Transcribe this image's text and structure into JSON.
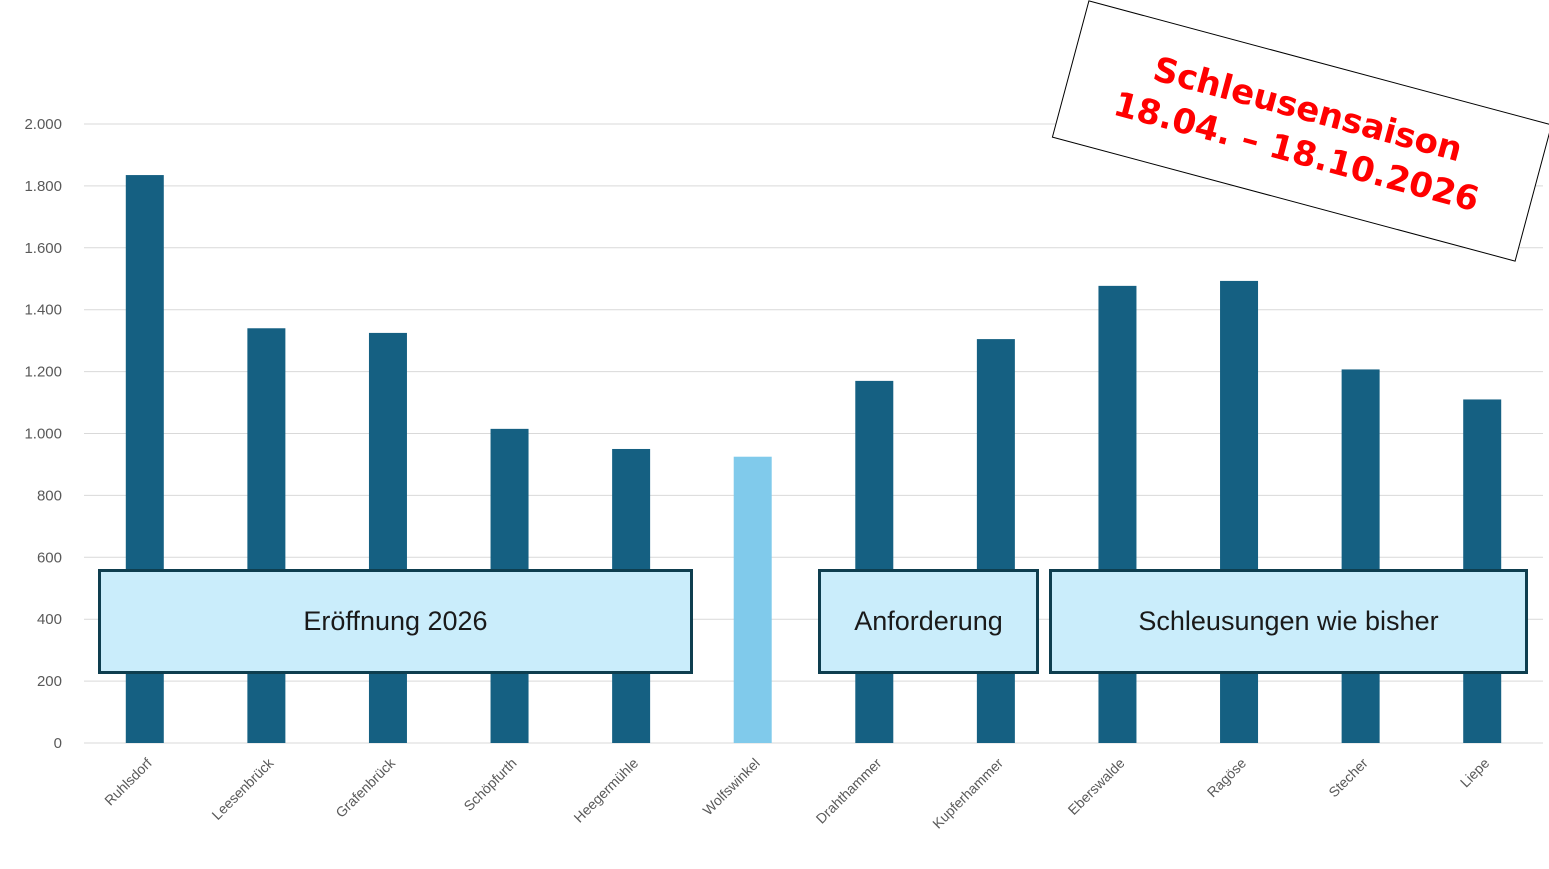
{
  "chart_data": {
    "type": "bar",
    "categories": [
      "Ruhlsdorf",
      "Leesenbrück",
      "Grafenbrück",
      "Schöpfurth",
      "Heegermühle",
      "Wolfswinkel",
      "Drahthammer",
      "Kupferhammer",
      "Eberswalde",
      "Ragöse",
      "Stecher",
      "Liepe"
    ],
    "values": [
      1835,
      1340,
      1325,
      1015,
      950,
      925,
      1170,
      1305,
      1477,
      1493,
      1207,
      1110
    ],
    "highlight_index": 5,
    "ylim": [
      0,
      2000
    ],
    "yticks": [
      0,
      200,
      400,
      600,
      800,
      1000,
      1200,
      1400,
      1600,
      1800,
      2000
    ],
    "ytick_labels": [
      "0",
      "200",
      "400",
      "600",
      "800",
      "1.000",
      "1.200",
      "1.400",
      "1.600",
      "1.800",
      "2.000"
    ],
    "grid": true,
    "title": "",
    "xlabel": "",
    "ylabel": "",
    "colors": {
      "bar": "#156082",
      "highlight": "#80caeb"
    }
  },
  "annotations": {
    "box_1": "Eröffnung 2026",
    "box_2": "Anforderung",
    "box_3": "Schleusungen wie bisher"
  },
  "stamp": {
    "line1": "Schleusensaison",
    "line2": "18.04. – 18.10.2026",
    "color": "#ff0000"
  }
}
